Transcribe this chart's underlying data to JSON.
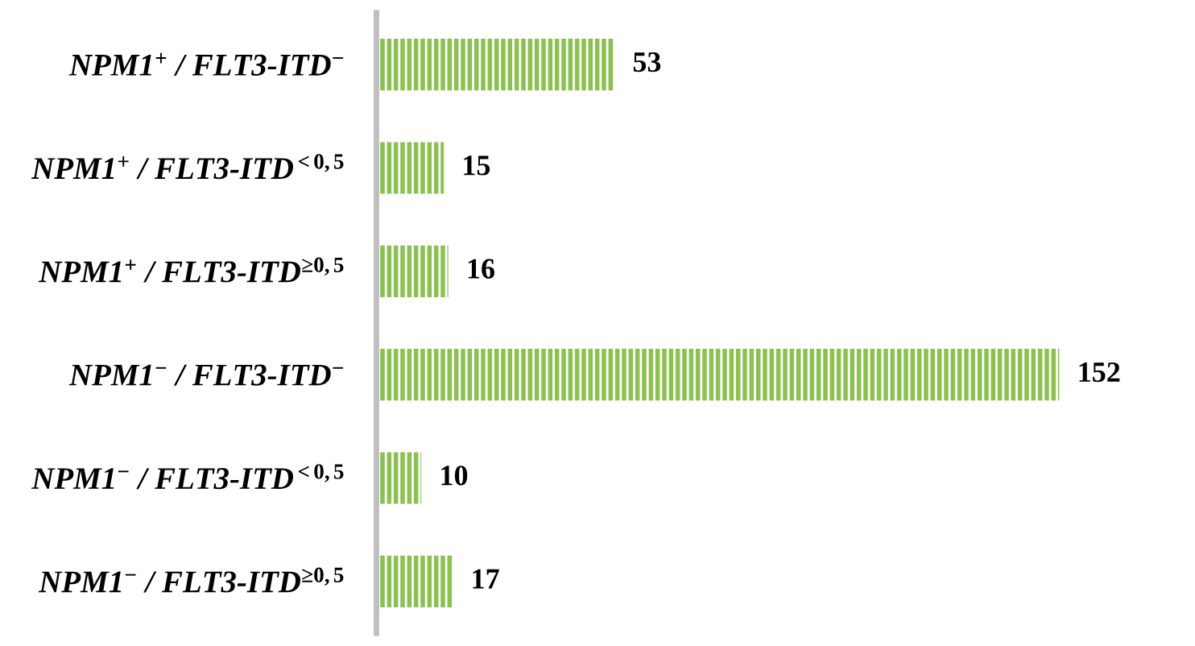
{
  "chart_data": {
    "type": "bar",
    "orientation": "horizontal",
    "categories": [
      "NPM1$^{+}$ / FLT3-ITD$^{−}$",
      "NPM1$^{+}$ / FLT3-ITD$^{<0,5}$",
      "NPM1$^{+}$ / FLT3-ITD$^{≥0,5}$",
      "NPM1$^{−}$ / FLT3-ITD$^{−}$",
      "NPM1$^{−}$ / FLT3-ITD$^{<0,5}$",
      "NPM1$^{−}$ / FLT3-ITD$^{≥0,5}$"
    ],
    "values": [
      53,
      15,
      16,
      152,
      10,
      17
    ],
    "color": "#8cc152",
    "data_labels": true,
    "tick_labels": "y",
    "grid": false,
    "legend": false
  }
}
